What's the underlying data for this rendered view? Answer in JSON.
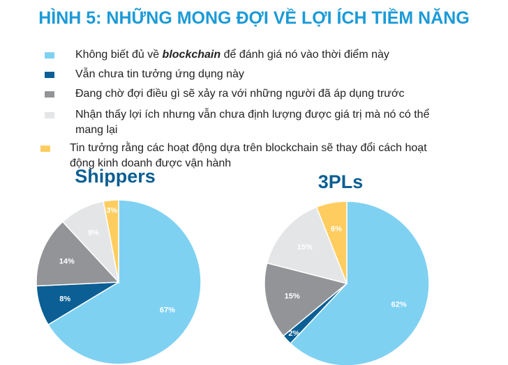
{
  "title": "HÌNH 5: NHỮNG MONG ĐỢI VỀ LỢI ÍCH TIỀM NĂNG",
  "legend": [
    {
      "parts": [
        "Không biết đủ về ",
        "blockchain",
        " để đánh giá nó vào thời điểm này"
      ],
      "color": "#7fd1f2"
    },
    {
      "parts": [
        "Vẫn chưa tin tưởng ứng dụng này"
      ],
      "color": "#0b5f95"
    },
    {
      "parts": [
        "Đang chờ đợi điều gì sẽ xảy ra với những người đã áp dụng trước"
      ],
      "color": "#929497"
    },
    {
      "parts": [
        "Nhận thấy lợi ích nhưng vẫn chưa định lượng được giá trị mà nó có thể mang lại"
      ],
      "color": "#e4e5e6"
    },
    {
      "parts": [
        "Tin tưởng rằng các hoạt động dựa trên blockchain sẽ thay đổi cách hoạt động kinh doanh được vận hành"
      ],
      "color": "#ffcd5f"
    }
  ],
  "chart_data": [
    {
      "type": "pie",
      "title": "Shippers",
      "values": [
        67,
        8,
        14,
        9,
        3
      ],
      "value_labels": [
        "67%",
        "8%",
        "14%",
        "9%",
        "3%"
      ]
    },
    {
      "type": "pie",
      "title": "3PLs",
      "values": [
        62,
        2,
        15,
        15,
        6
      ],
      "value_labels": [
        "62%",
        "2%",
        "15%",
        "15%",
        "6%"
      ]
    }
  ]
}
